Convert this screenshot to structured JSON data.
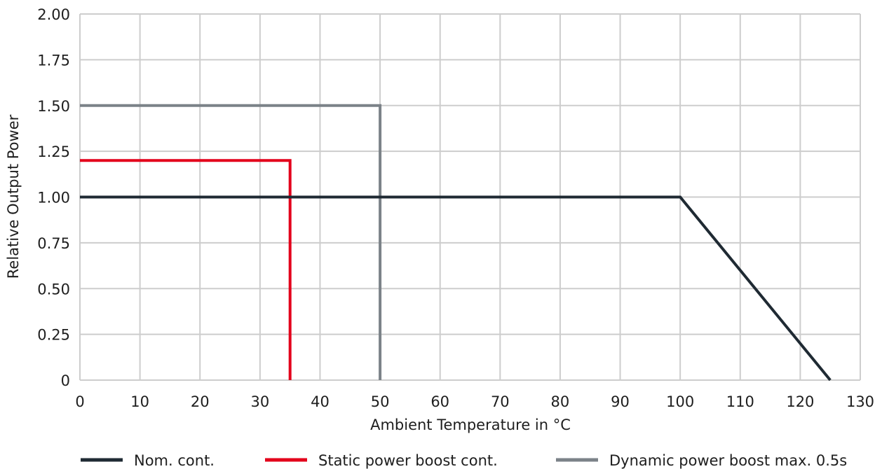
{
  "chart_data": {
    "type": "line",
    "xlabel": "Ambient Temperature in °C",
    "ylabel": "Relative Output Power",
    "xlim": [
      0,
      130
    ],
    "ylim": [
      0,
      2.0
    ],
    "x_ticks": [
      "0",
      "10",
      "20",
      "30",
      "40",
      "50",
      "60",
      "70",
      "80",
      "90",
      "100",
      "110",
      "120",
      "130"
    ],
    "y_ticks": [
      "0",
      "0.25",
      "0.50",
      "0.75",
      "1.00",
      "1.25",
      "1.50",
      "1.75",
      "2.00"
    ],
    "grid": true,
    "legend_position": "bottom",
    "series": [
      {
        "name": "Nom. cont.",
        "color": "#1f2a33",
        "points": [
          [
            0,
            1.0
          ],
          [
            100,
            1.0
          ],
          [
            125,
            0
          ]
        ]
      },
      {
        "name": "Static power boost cont.",
        "color": "#e3001b",
        "points": [
          [
            0,
            1.2
          ],
          [
            35,
            1.2
          ],
          [
            35,
            0
          ]
        ]
      },
      {
        "name": "Dynamic power boost max. 0.5s",
        "color": "#7b8288",
        "points": [
          [
            0,
            1.5
          ],
          [
            50,
            1.5
          ],
          [
            50,
            0
          ]
        ]
      }
    ]
  }
}
